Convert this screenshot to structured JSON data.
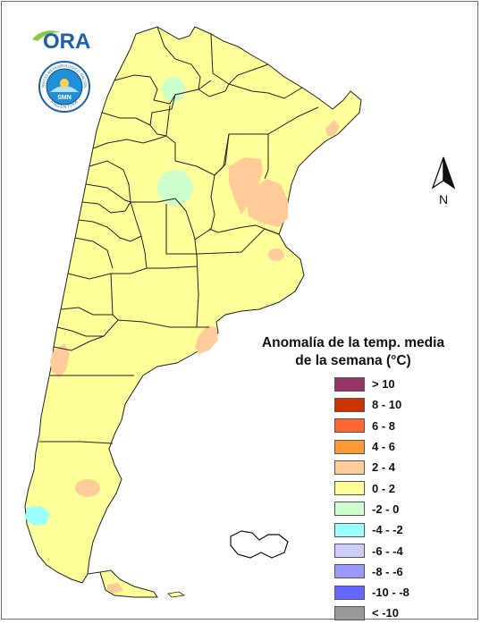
{
  "logo": {
    "text": "ORA",
    "leaf_color": "#8dc63f",
    "text_color": "#1f5fa8"
  },
  "seal": {
    "name": "Servicio Meteorologico Nacional seal",
    "top_text": "SERVICIO METEOROLOGICO NACIONAL",
    "bottom_text": "ARGENTINA",
    "inner_text": "SMN"
  },
  "north_arrow": {
    "label": "N"
  },
  "legend": {
    "title_line1": "Anomalía de la temp. media",
    "title_line2": "de la semana (°C)",
    "items": [
      {
        "label": "> 10",
        "color": "#993366"
      },
      {
        "label": "8 - 10",
        "color": "#cc3300"
      },
      {
        "label": "6 - 8",
        "color": "#ff6633"
      },
      {
        "label": "4 - 6",
        "color": "#ff9933"
      },
      {
        "label": "2 - 4",
        "color": "#ffcc99"
      },
      {
        "label": "0 - 2",
        "color": "#ffff99"
      },
      {
        "label": "-2 - 0",
        "color": "#ccffcc"
      },
      {
        "label": "-4 - -2",
        "color": "#99ffff"
      },
      {
        "label": "-6 - -4",
        "color": "#ccccff"
      },
      {
        "label": "-8 - -6",
        "color": "#9999ff"
      },
      {
        "label": "-10 - -8",
        "color": "#6666ff"
      },
      {
        "label": "< -10",
        "color": "#999999"
      }
    ]
  },
  "map": {
    "base_fill": "#ffff99",
    "border_color": "#222222",
    "anomaly_areas": [
      {
        "region": "northwest-jujuy-salta",
        "class": "-2 - 0",
        "color": "#ccffcc"
      },
      {
        "region": "central-cordoba-catamarca",
        "class": "-2 - 0",
        "color": "#ccffcc"
      },
      {
        "region": "northeast-santa-fe-corrientes",
        "class": "2 - 4",
        "color": "#ffcc99"
      },
      {
        "region": "entre-rios",
        "class": "2 - 4",
        "color": "#ffcc99"
      },
      {
        "region": "misiones",
        "class": "2 - 4",
        "color": "#ffcc99"
      },
      {
        "region": "buenos-aires-east",
        "class": "2 - 4",
        "color": "#ffcc99"
      },
      {
        "region": "buenos-aires-south-coast",
        "class": "2 - 4",
        "color": "#ffcc99"
      },
      {
        "region": "neuquen-rio-negro-west",
        "class": "2 - 4",
        "color": "#ffcc99"
      },
      {
        "region": "santa-cruz-central",
        "class": "2 - 4",
        "color": "#ffcc99"
      },
      {
        "region": "santa-cruz-southwest",
        "class": "-4 - -2",
        "color": "#99ffff"
      },
      {
        "region": "tierra-del-fuego",
        "class": "2 - 4",
        "color": "#ffcc99"
      }
    ]
  }
}
